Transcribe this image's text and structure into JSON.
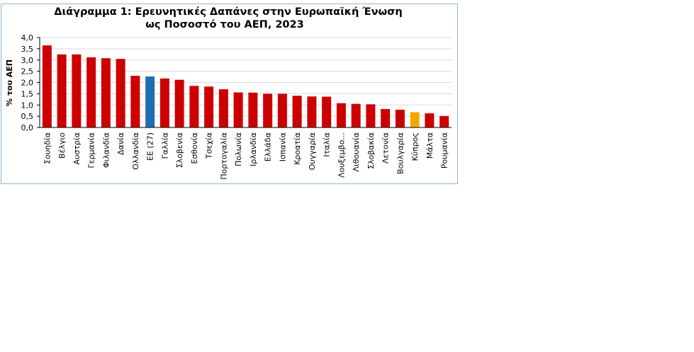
{
  "chart_data": {
    "type": "bar",
    "title_line1": "Διάγραμμα 1:  Ερευνητικές Δαπάνες στην Ευρωπαϊκή Ένωση",
    "title_line2": "ως Ποσοστό του ΑΕΠ, 2023",
    "ylabel": "%  του  ΑΕΠ",
    "xlabel": "",
    "ylim": [
      0,
      4.0
    ],
    "yticks": [
      "0,0",
      "0,5",
      "1,0",
      "1,5",
      "2,0",
      "2,5",
      "3,0",
      "3,5",
      "4,0"
    ],
    "grid": true,
    "categories": [
      "Σουηδία",
      "Βέλγιο",
      "Αυστρία",
      "Γερμανία",
      "Φιλανδία",
      "Δανία",
      "Ολλανδία",
      "ΕΕ (27)",
      "Γαλλία",
      "Σλοβενία",
      "Εσθονία",
      "Τσεχία",
      "Πορτογαλία",
      "Πολωνία",
      "Ιρλανδία",
      "Ελλάδα",
      "Ισπανία",
      "Κροατία",
      "Ουγγαρία",
      "Ιταλία",
      "Λουξεμβο...",
      "Λιθουανία",
      "Σλοβακία",
      "Λετονία",
      "Βουλγαρία",
      "Κύπρος",
      "Μάλτα",
      "Ρουμανία"
    ],
    "values": [
      3.65,
      3.25,
      3.25,
      3.12,
      3.08,
      3.05,
      2.3,
      2.27,
      2.18,
      2.12,
      1.85,
      1.82,
      1.7,
      1.56,
      1.55,
      1.5,
      1.5,
      1.41,
      1.38,
      1.37,
      1.08,
      1.05,
      1.03,
      0.82,
      0.79,
      0.68,
      0.63,
      0.51
    ],
    "colors": {
      "default": "#cc0000",
      "highlight_eu": "#1f6fb0",
      "highlight_cyprus": "#f0a800",
      "grid": "#d9d9d9",
      "axis": "#000000"
    },
    "bar_colors": [
      "#cc0000",
      "#cc0000",
      "#cc0000",
      "#cc0000",
      "#cc0000",
      "#cc0000",
      "#cc0000",
      "#1f6fb0",
      "#cc0000",
      "#cc0000",
      "#cc0000",
      "#cc0000",
      "#cc0000",
      "#cc0000",
      "#cc0000",
      "#cc0000",
      "#cc0000",
      "#cc0000",
      "#cc0000",
      "#cc0000",
      "#cc0000",
      "#cc0000",
      "#cc0000",
      "#cc0000",
      "#cc0000",
      "#f0a800",
      "#cc0000",
      "#cc0000"
    ]
  }
}
